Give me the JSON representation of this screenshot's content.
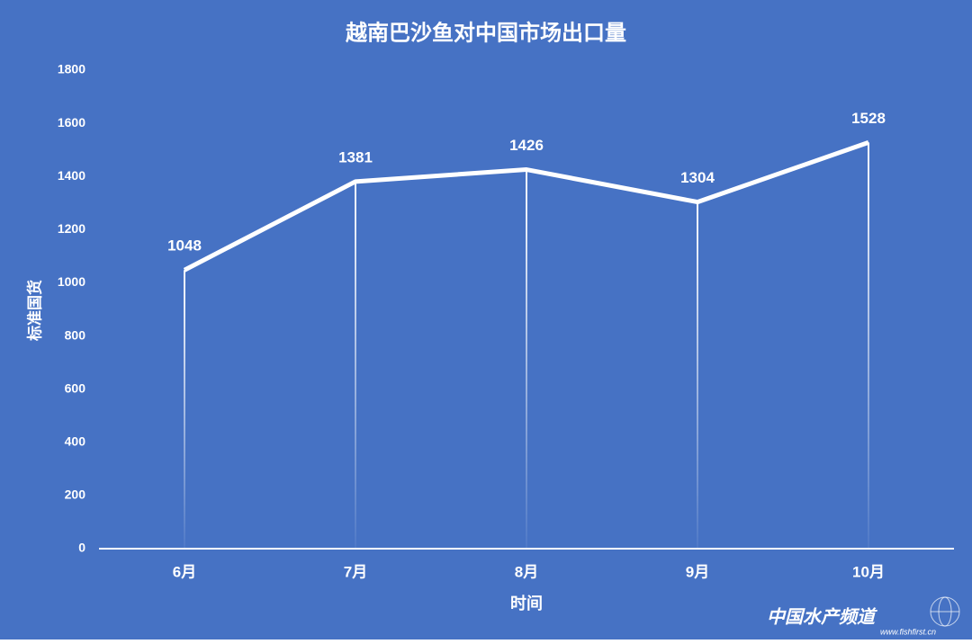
{
  "chart_data": {
    "type": "line",
    "title": "越南巴沙鱼对中国市场出口量",
    "x_label": "时间",
    "y_label": "标准国货",
    "categories": [
      "6月",
      "7月",
      "8月",
      "9月",
      "10月"
    ],
    "values": [
      1048,
      1381,
      1426,
      1304,
      1528
    ],
    "color": "#ffffff",
    "background": "#4672c4",
    "ylim": [
      0,
      1800
    ],
    "yticks": [
      0,
      200,
      400,
      600,
      800,
      1000,
      1200,
      1400,
      1600,
      1800
    ],
    "grid": false,
    "drop_lines": true,
    "watermark": "中国水产频道",
    "watermark_url": "www.fishfirst.cn"
  }
}
